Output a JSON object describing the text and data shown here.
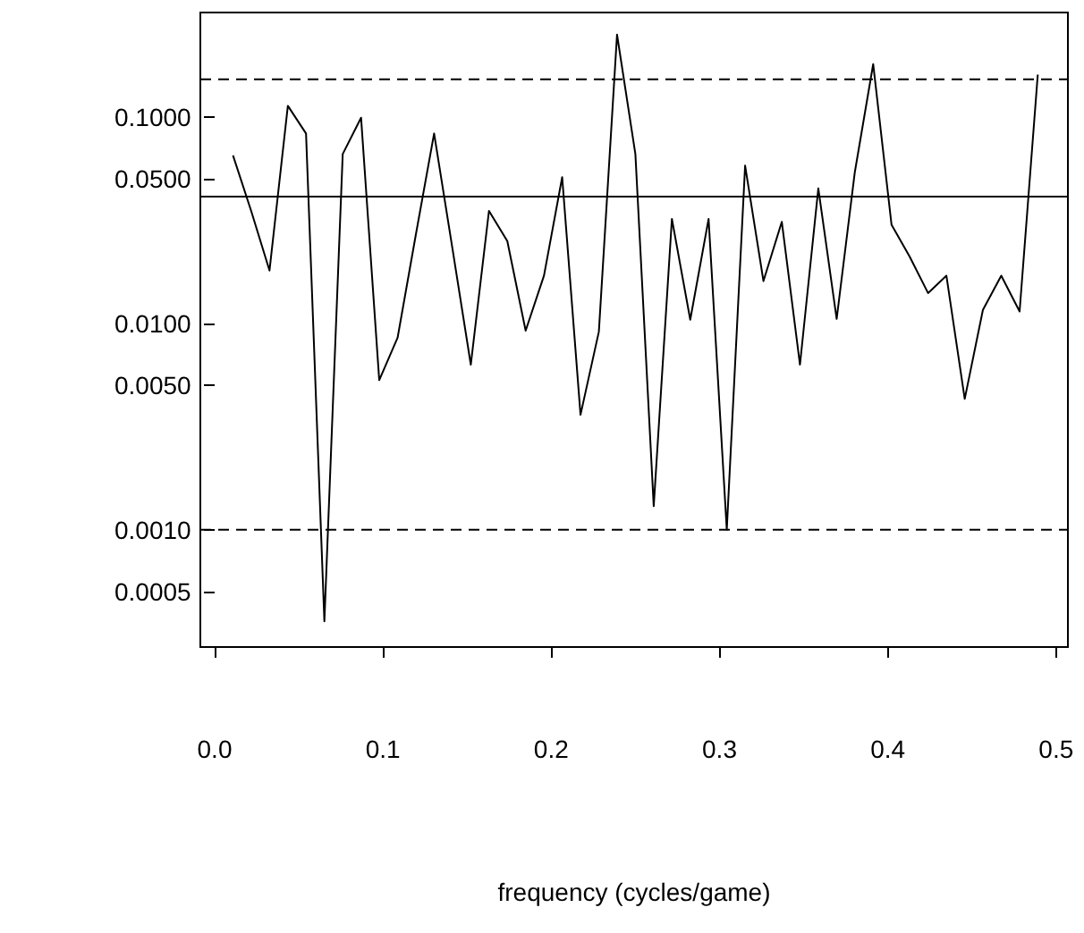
{
  "chart_data": {
    "type": "line",
    "xlabel": "frequency (cycles/game)",
    "log": "y",
    "grid": false,
    "marker": "none",
    "line_style": "solid",
    "xlim": [
      -0.0085,
      0.507
    ],
    "ylim": [
      0.00027,
      0.32
    ],
    "xticks": [
      {
        "value": 0,
        "label": "0.0"
      },
      0.1,
      0.2,
      0.3,
      0.4,
      0.5
    ],
    "yticks": [
      {
        "value": 0.1,
        "label": "0.1000"
      },
      {
        "value": 0.05,
        "label": "0.0500"
      },
      {
        "value": 0.01,
        "label": "0.0100"
      },
      {
        "value": 0.005,
        "label": "0.0050"
      },
      {
        "value": 0.001,
        "label": "0.0010"
      },
      {
        "value": 0.0005,
        "label": "0.0005"
      }
    ],
    "x": [
      0.0109,
      0.0217,
      0.0326,
      0.0435,
      0.0543,
      0.0652,
      0.0761,
      0.087,
      0.0978,
      0.1087,
      0.1196,
      0.1304,
      0.1413,
      0.1522,
      0.163,
      0.1739,
      0.1848,
      0.1957,
      0.2065,
      0.2174,
      0.2283,
      0.2391,
      0.25,
      0.2609,
      0.2717,
      0.2826,
      0.2935,
      0.3043,
      0.3152,
      0.3261,
      0.337,
      0.3478,
      0.3587,
      0.3696,
      0.3804,
      0.3913,
      0.4022,
      0.413,
      0.4239,
      0.4348,
      0.4457,
      0.4565,
      0.4674,
      0.4783,
      0.4891
    ],
    "series": [
      {
        "color": "#000000",
        "values": [
          0.065,
          0.035,
          0.018,
          0.113,
          0.083,
          0.00036,
          0.066,
          0.099,
          0.0053,
          0.0085,
          0.027,
          0.083,
          0.023,
          0.0063,
          0.035,
          0.025,
          0.0092,
          0.017,
          0.051,
          0.0036,
          0.0091,
          0.25,
          0.066,
          0.0013,
          0.032,
          0.0104,
          0.032,
          0.001,
          0.058,
          0.016,
          0.031,
          0.0063,
          0.045,
          0.0105,
          0.054,
          0.18,
          0.03,
          0.021,
          0.014,
          0.017,
          0.0043,
          0.0116,
          0.017,
          0.0114,
          0.16
        ]
      }
    ],
    "ref_lines": [
      {
        "axis": "y",
        "value": 0.041,
        "color": "#000000",
        "line_style": "solid"
      },
      {
        "axis": "y",
        "value": 0.152,
        "color": "#000000",
        "line_style": "dashed"
      },
      {
        "axis": "y",
        "value": 0.001,
        "color": "#000000",
        "line_style": "dashed"
      }
    ]
  }
}
